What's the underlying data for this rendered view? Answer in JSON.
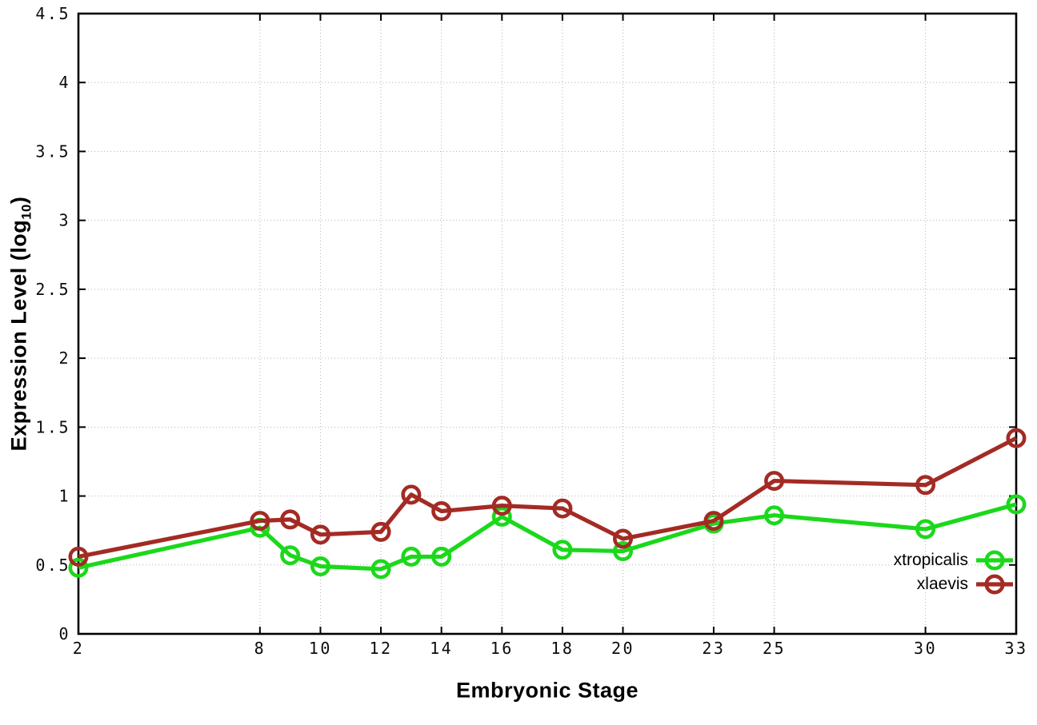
{
  "chart_data": {
    "type": "line",
    "title": "",
    "xlabel": "Embryonic Stage",
    "ylabel": "Expression Level (log10)",
    "ylabel_parts": {
      "main": "Expression Level (log",
      "sub": "10",
      "close": ")"
    },
    "xlim": [
      2,
      33
    ],
    "ylim": [
      0,
      4.5
    ],
    "grid": true,
    "legend_position": "bottom-right",
    "xticks": [
      2,
      8,
      10,
      12,
      14,
      16,
      18,
      20,
      23,
      25,
      30,
      33
    ],
    "xtick_labels": [
      "2",
      "8",
      "10",
      "12",
      "14",
      "16",
      "18",
      "20",
      "23",
      "25",
      "30",
      "33"
    ],
    "yticks": [
      0,
      0.5,
      1,
      1.5,
      2,
      2.5,
      3,
      3.5,
      4,
      4.5
    ],
    "ytick_labels": [
      "0",
      "0.5",
      "1",
      "1.5",
      "2",
      "2.5",
      "3",
      "3.5",
      "4",
      "4.5"
    ],
    "x": [
      2,
      8,
      9,
      10,
      12,
      13,
      14,
      16,
      18,
      20,
      23,
      25,
      30,
      33
    ],
    "series": [
      {
        "name": "xtropicalis",
        "color": "#1bd81b",
        "values": [
          0.48,
          0.77,
          0.57,
          0.49,
          0.47,
          0.56,
          0.56,
          0.85,
          0.61,
          0.6,
          0.8,
          0.86,
          0.76,
          0.94
        ]
      },
      {
        "name": "xlaevis",
        "color": "#a32b24",
        "values": [
          0.56,
          0.82,
          0.83,
          0.72,
          0.74,
          1.01,
          0.89,
          0.93,
          0.91,
          0.69,
          0.82,
          1.11,
          1.08,
          1.42
        ]
      }
    ]
  },
  "colors": {
    "background": "#ffffff",
    "axis_border": "#000000",
    "grid": "#b4b4b4",
    "tick_text": "#0c0c0c",
    "series_green": "#1bd81b",
    "series_red": "#a32b24"
  }
}
